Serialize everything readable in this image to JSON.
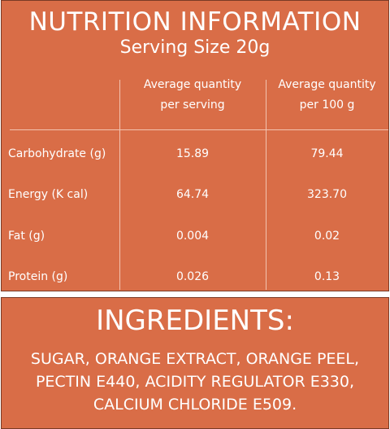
{
  "nutrition": {
    "title": "NUTRITION INFORMATION",
    "subtitle": "Serving Size 20g",
    "columns": [
      [
        "Average quantity",
        "per serving"
      ],
      [
        "Average quantity",
        "per 100 g"
      ]
    ],
    "rows": [
      [
        "Carbohydrate (g)",
        "15.89",
        "79.44"
      ],
      [
        "Energy (K cal)",
        "64.74",
        "323.70"
      ],
      [
        "Fat (g)",
        "0.004",
        "0.02"
      ],
      [
        "Protein (g)",
        "0.026",
        "0.13"
      ]
    ]
  },
  "ingredients": {
    "title": "INGREDIENTS:",
    "lines": [
      "SUGAR, ORANGE EXTRACT, ORANGE PEEL,",
      "PECTIN E440, ACIDITY REGULATOR E330,",
      "CALCIUM CHLORIDE E509."
    ]
  }
}
